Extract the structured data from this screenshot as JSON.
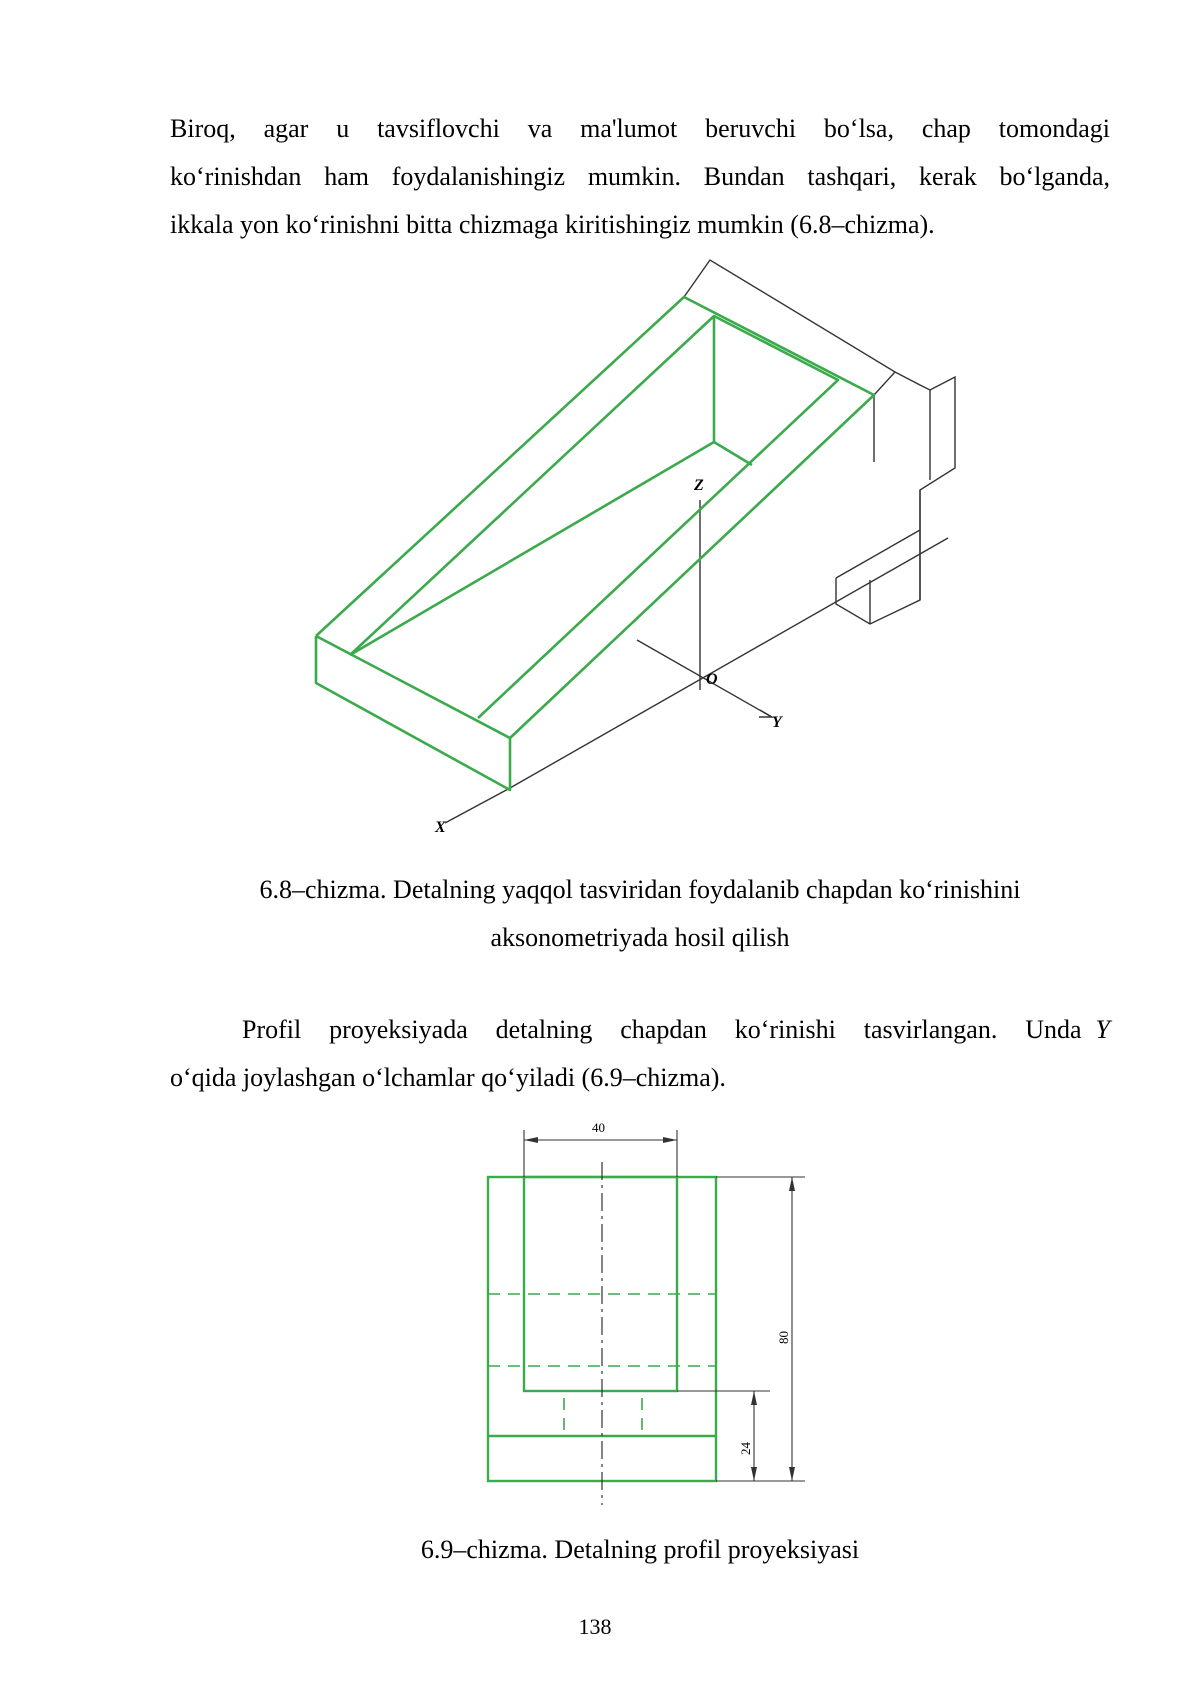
{
  "paragraph_1": {
    "line_1": "Biroq, agar u tavsiflovchi va ma'lumot beruvchi bo‘lsa, chap tomondagi",
    "line_2": "ko‘rinishdan ham foydalanishingiz mumkin. Bundan tashqari, kerak bo‘lganda,",
    "line_3": "ikkala yon ko‘rinishni bitta chizmaga kiritishingiz mumkin (6.8–chizma)."
  },
  "figure_68": {
    "axes": {
      "x": "X",
      "y": "Y",
      "z": "Z",
      "origin": "O"
    },
    "colors": {
      "edge": "#3aaa4c",
      "outline": "#333333"
    },
    "caption_line_1": "6.8–chizma. Detalning yaqqol tasviridan foydalanib chapdan ko‘rinishini",
    "caption_line_2": "aksonometriyada hosil qilish"
  },
  "paragraph_2": {
    "line_1_text": "Profil proyeksiyada detalning chapdan ko‘rinishi tasvirlangan. Unda",
    "line_1_italic": "Y",
    "line_2": "o‘qida joylashgan o‘lchamlar qo‘yiladi (6.9–chizma)."
  },
  "figure_69": {
    "dimensions": {
      "width": "40",
      "height": "80",
      "base": "24"
    },
    "caption": "6.9–chizma. Detalning profil proyeksiyasi"
  },
  "page_number": "138"
}
